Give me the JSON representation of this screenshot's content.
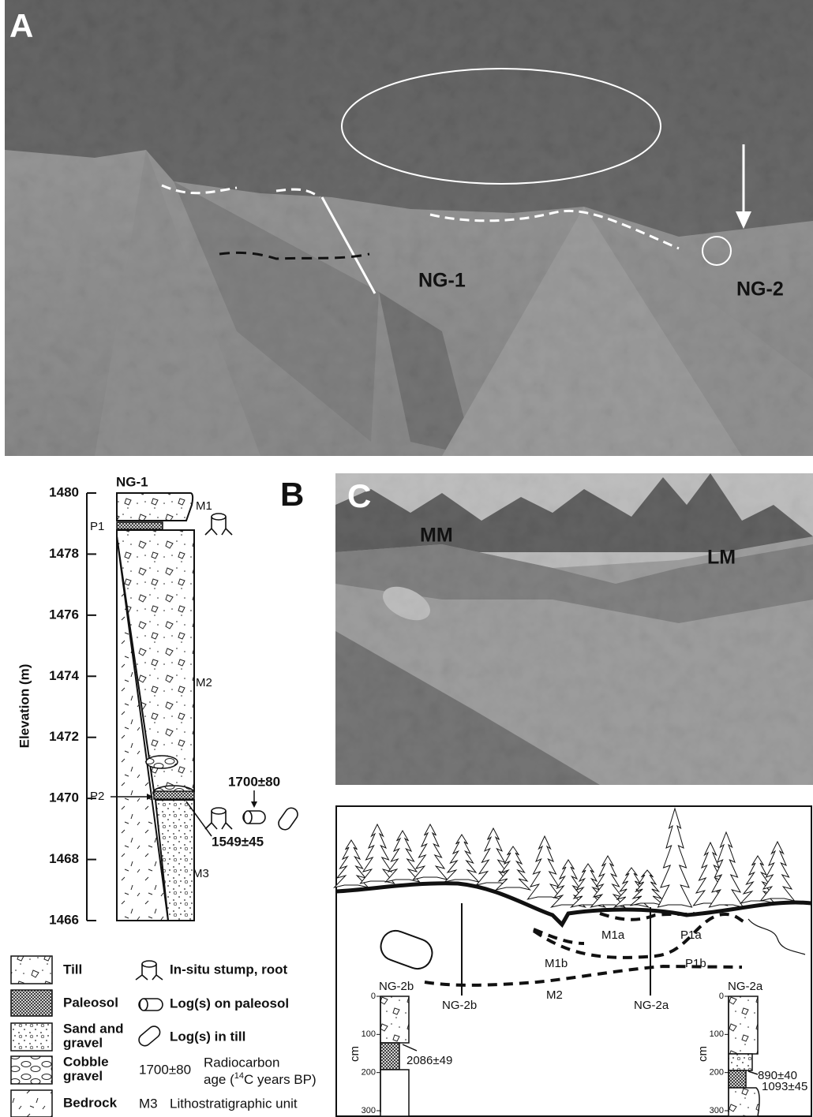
{
  "panel_a": {
    "label": "A",
    "sites": [
      "NG-1",
      "NG-2"
    ]
  },
  "panel_b": {
    "label": "B",
    "column": "NG-1",
    "axis_label": "Elevation (m)",
    "yticks": [
      1466,
      1468,
      1470,
      1472,
      1474,
      1476,
      1478,
      1480
    ],
    "units": [
      "M1",
      "M2",
      "M3"
    ],
    "paleosols": [
      "P1",
      "P2"
    ],
    "dates": [
      "1700±80",
      "1549±45"
    ]
  },
  "legend": {
    "items": [
      [
        "Till"
      ],
      [
        "Paleosol"
      ],
      [
        "Sand and",
        "gravel"
      ],
      [
        "Cobble",
        "gravel"
      ],
      [
        "Bedrock"
      ]
    ],
    "symbols": [
      "In-situ stump, root",
      "Log(s) on paleosol",
      "Log(s) in till"
    ],
    "date_example": "1700±80",
    "date_desc": [
      "Radiocarbon",
      "age (",
      "14",
      "C years BP)"
    ],
    "unit_example": "M3",
    "unit_desc": "Lithostratigraphic unit"
  },
  "panel_c": {
    "label": "C",
    "moraines": [
      "MM",
      "LM"
    ]
  },
  "panel_d": {
    "units": [
      "M1a",
      "M1b",
      "M2"
    ],
    "paleosols": [
      "P1a",
      "P1b"
    ],
    "sections": [
      "NG-2b",
      "NG-2a"
    ],
    "columns": [
      {
        "name": "NG-2b",
        "axis_label": "cm",
        "yticks": [
          0,
          100,
          200,
          300
        ],
        "dates": [
          "2086±49"
        ]
      },
      {
        "name": "NG-2a",
        "axis_label": "cm",
        "yticks": [
          0,
          100,
          200,
          300
        ],
        "dates": [
          "890±40",
          "1093±45"
        ]
      }
    ]
  }
}
